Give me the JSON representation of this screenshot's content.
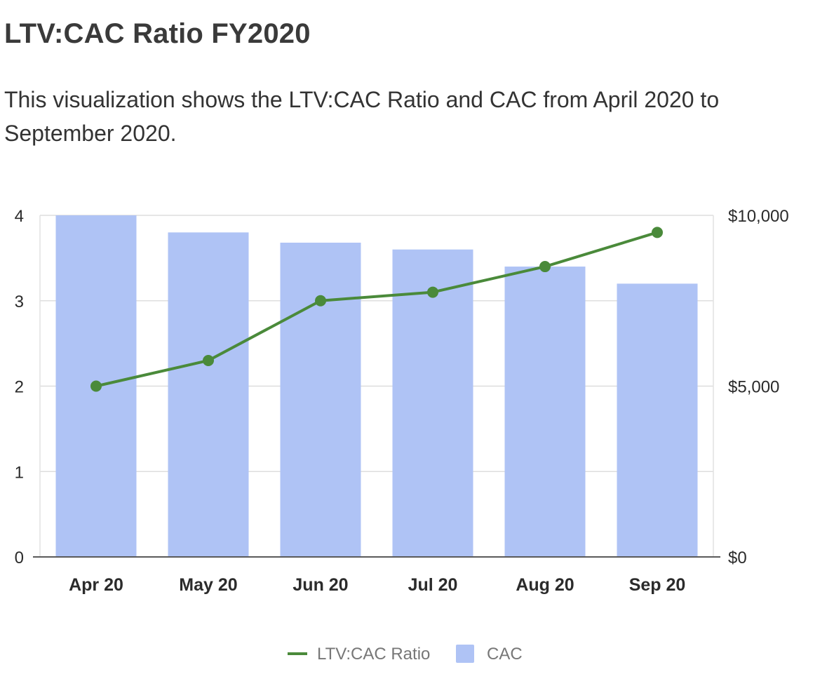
{
  "header": {
    "title": "LTV:CAC Ratio FY2020",
    "description": "This visualization shows the LTV:CAC Ratio and CAC from April 2020 to September 2020."
  },
  "chart_data": {
    "type": "bar",
    "title": "",
    "xlabel": "",
    "ylabel": "",
    "categories": [
      "Apr 20",
      "May 20",
      "Jun 20",
      "Jul 20",
      "Aug 20",
      "Sep 20"
    ],
    "series": [
      {
        "name": "LTV:CAC Ratio",
        "type": "line",
        "axis": "left",
        "color": "#4a8a3a",
        "values": [
          2.0,
          2.3,
          3.0,
          3.1,
          3.4,
          3.8
        ]
      },
      {
        "name": "CAC",
        "type": "bar",
        "axis": "right",
        "color": "#afc3f5",
        "values": [
          10000,
          9500,
          9200,
          9000,
          8500,
          8000
        ]
      }
    ],
    "y_left": {
      "range": [
        0,
        4
      ],
      "ticks": [
        0,
        1,
        2,
        3,
        4
      ],
      "tick_labels": [
        "0",
        "1",
        "2",
        "3",
        "4"
      ]
    },
    "y_right": {
      "range": [
        0,
        10000
      ],
      "ticks": [
        0,
        5000,
        10000
      ],
      "tick_labels": [
        "$0",
        "$5,000",
        "$10,000"
      ]
    },
    "grid": true,
    "legend": "bottom-center"
  }
}
